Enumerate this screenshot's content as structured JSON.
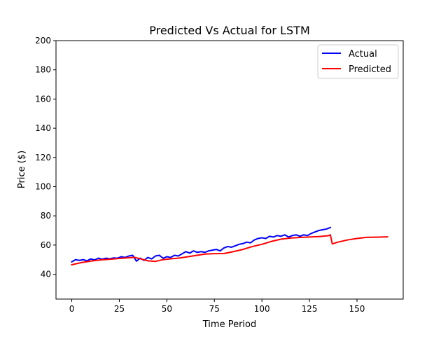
{
  "chart_data": {
    "type": "line",
    "title": "Predicted Vs Actual for LSTM",
    "xlabel": "Time Period",
    "ylabel": "Price ($)",
    "xlim": [
      -8.3,
      174.3
    ],
    "ylim": [
      23,
      200
    ],
    "xticks": [
      0,
      25,
      50,
      75,
      100,
      125,
      150
    ],
    "yticks": [
      40,
      60,
      80,
      100,
      120,
      140,
      160,
      180,
      200
    ],
    "legend_position": "upper right",
    "grid": false,
    "series": [
      {
        "name": "Actual",
        "color": "#0000ff",
        "x": [
          0,
          2,
          4,
          6,
          8,
          10,
          12,
          14,
          16,
          18,
          20,
          22,
          24,
          26,
          28,
          30,
          32,
          34,
          36,
          38,
          40,
          42,
          44,
          46,
          48,
          50,
          52,
          54,
          56,
          58,
          60,
          62,
          64,
          66,
          68,
          70,
          72,
          74,
          76,
          78,
          80,
          82,
          84,
          86,
          88,
          90,
          92,
          94,
          96,
          98,
          100,
          102,
          104,
          106,
          108,
          110,
          112,
          114,
          116,
          118,
          120,
          122,
          124,
          126,
          128,
          130,
          132,
          134,
          136
        ],
        "y": [
          48.5,
          50,
          49.5,
          50,
          49.2,
          50.5,
          49.8,
          51,
          50.3,
          51,
          50.6,
          51.2,
          51,
          52,
          51.5,
          52.5,
          53,
          49,
          51,
          49.5,
          51.5,
          50.5,
          52.5,
          53,
          51,
          52,
          51.5,
          53,
          52.5,
          54,
          55.5,
          54.5,
          56,
          55,
          55.5,
          55,
          56,
          56.5,
          57,
          56,
          58,
          59,
          58.5,
          59.5,
          60.5,
          61,
          62,
          61.5,
          63.5,
          64.5,
          65,
          64.5,
          66,
          65.5,
          66.5,
          66,
          67,
          65.5,
          66.5,
          67,
          66,
          67,
          66.5,
          68,
          69,
          70,
          70.5,
          71,
          72
        ]
      },
      {
        "name": "Predicted",
        "color": "#ff0000",
        "x": [
          0,
          5,
          10,
          15,
          20,
          25,
          30,
          33,
          36,
          40,
          44,
          48,
          52,
          56,
          60,
          65,
          70,
          75,
          80,
          85,
          90,
          95,
          100,
          105,
          110,
          115,
          120,
          125,
          130,
          135,
          136,
          137,
          140,
          145,
          150,
          155,
          160,
          166
        ],
        "y": [
          46.5,
          48,
          49,
          49.8,
          50.3,
          50.8,
          51.3,
          51.6,
          50.6,
          49.2,
          48.8,
          50,
          50.6,
          51,
          51.8,
          52.8,
          53.8,
          54.1,
          54.2,
          55.5,
          57,
          59,
          60.5,
          62.5,
          64,
          64.8,
          65.2,
          65.5,
          65.8,
          66.4,
          67,
          60.8,
          62,
          63.5,
          64.5,
          65.3,
          65.4,
          65.6
        ]
      }
    ]
  }
}
